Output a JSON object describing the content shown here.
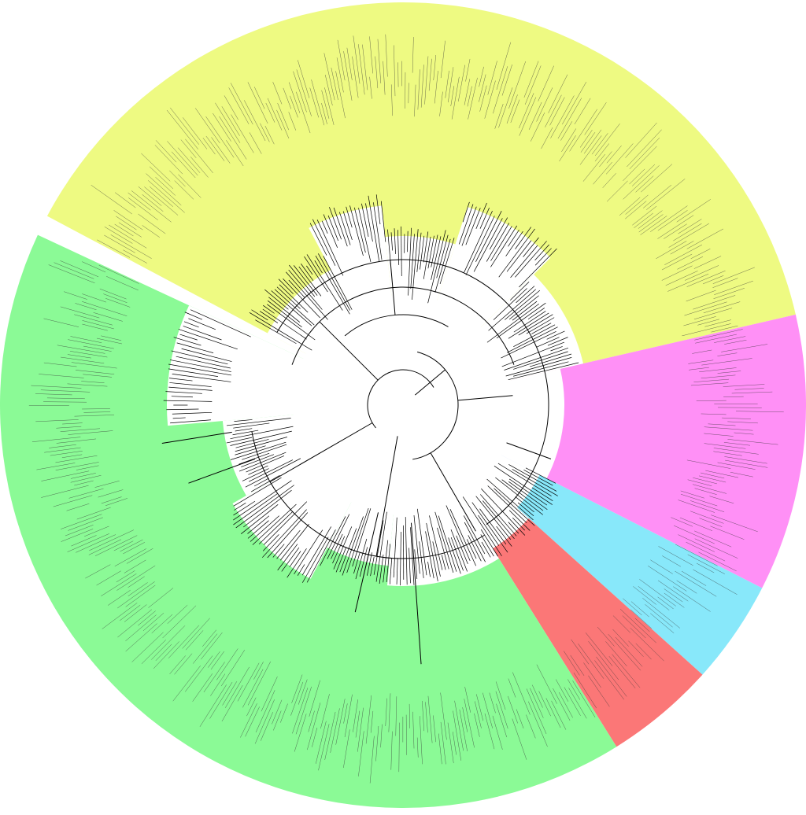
{
  "figure": {
    "type": "circular phylogenetic tree",
    "background": "#ffffff",
    "leaf_labels_legible": false
  },
  "clades": [
    {
      "id": "yellow",
      "color": "#eefa82"
    },
    {
      "id": "magenta",
      "color": "#ff90f6"
    },
    {
      "id": "cyan",
      "color": "#88e8fa"
    },
    {
      "id": "red",
      "color": "#fb7777"
    },
    {
      "id": "green",
      "color": "#8bfa96"
    }
  ],
  "colors": {
    "branch": "#000000",
    "leaf_text": "#333333"
  }
}
